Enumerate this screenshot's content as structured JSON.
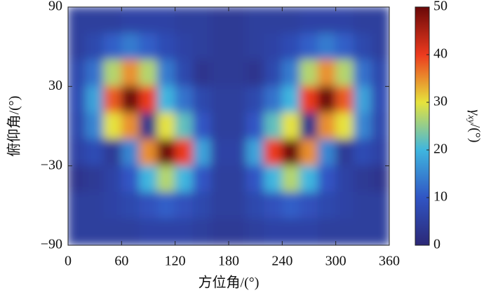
{
  "chart_data": {
    "type": "heatmap",
    "x_label": "方位角/(°)",
    "y_label": "俯仰角/(°)",
    "colorbar_label": {
      "symbol": "γ",
      "subscript": "xy",
      "unit": "/(°)"
    },
    "x": [
      0,
      20,
      40,
      60,
      80,
      100,
      120,
      140,
      160,
      180,
      200,
      220,
      240,
      260,
      280,
      300,
      320,
      340,
      360
    ],
    "y": [
      90,
      70,
      50,
      30,
      10,
      -10,
      -30,
      -50,
      -70,
      -90
    ],
    "values": [
      [
        5,
        5,
        5,
        6,
        6,
        6,
        5,
        5,
        4,
        4,
        5,
        5,
        5,
        6,
        6,
        6,
        5,
        5
      ],
      [
        5,
        7,
        11,
        14,
        11,
        8,
        6,
        5,
        4,
        4,
        5,
        6,
        8,
        11,
        14,
        11,
        7,
        5
      ],
      [
        7,
        13,
        27,
        35,
        27,
        14,
        7,
        3,
        4,
        4,
        3,
        7,
        14,
        27,
        35,
        27,
        13,
        7
      ],
      [
        8,
        18,
        38,
        50,
        40,
        20,
        13,
        7,
        5,
        5,
        7,
        13,
        20,
        40,
        50,
        38,
        18,
        8
      ],
      [
        7,
        15,
        30,
        35,
        3,
        30,
        22,
        10,
        5,
        5,
        10,
        22,
        30,
        3,
        35,
        30,
        15,
        7
      ],
      [
        6,
        8,
        4,
        15,
        35,
        50,
        40,
        18,
        6,
        6,
        18,
        40,
        50,
        35,
        15,
        4,
        8,
        6
      ],
      [
        3,
        4,
        6,
        10,
        20,
        27,
        20,
        10,
        5,
        5,
        10,
        20,
        27,
        20,
        10,
        6,
        4,
        3
      ],
      [
        5,
        5,
        6,
        7,
        9,
        11,
        9,
        7,
        5,
        5,
        7,
        9,
        11,
        9,
        7,
        6,
        5,
        5
      ],
      [
        5,
        5,
        5,
        5,
        6,
        6,
        6,
        5,
        4,
        4,
        5,
        6,
        6,
        6,
        5,
        5,
        5,
        5
      ]
    ],
    "xlim": [
      0,
      360
    ],
    "xticks": [
      0,
      60,
      120,
      180,
      240,
      300,
      360
    ],
    "ylim": [
      -90,
      90
    ],
    "yticks": [
      {
        "value": -90,
        "label": "−90"
      },
      {
        "value": -30,
        "label": "−30"
      },
      30,
      90
    ],
    "clim": [
      0,
      50
    ],
    "cticks": [
      0,
      10,
      20,
      30,
      40,
      50
    ],
    "colormap": [
      "#2c2876",
      "#3055c4",
      "#3fb6df",
      "#e6e33c",
      "#ec3a1e",
      "#6a0808"
    ]
  }
}
